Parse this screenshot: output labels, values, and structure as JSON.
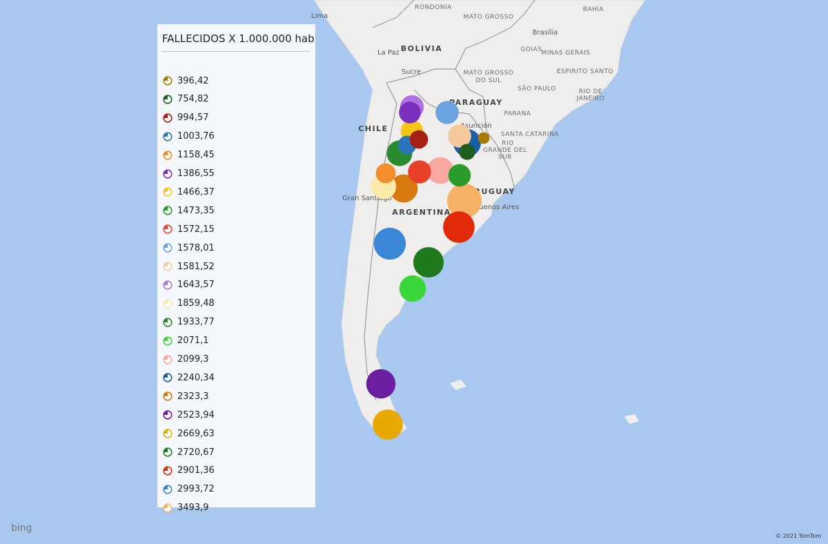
{
  "legend": {
    "title": "FALLECIDOS X 1.000.000 hab",
    "items": [
      {
        "value": 396.42,
        "label": "396,42",
        "color": "#a67c00"
      },
      {
        "value": 754.82,
        "label": "754,82",
        "color": "#1e5e1e"
      },
      {
        "value": 994.57,
        "label": "994,57",
        "color": "#a52010"
      },
      {
        "value": 1003.76,
        "label": "1003,76",
        "color": "#2a74b8"
      },
      {
        "value": 1158.45,
        "label": "1158,45",
        "color": "#f28e2b"
      },
      {
        "value": 1386.55,
        "label": "1386,55",
        "color": "#7b2fbe"
      },
      {
        "value": 1466.37,
        "label": "1466,37",
        "color": "#f5c518"
      },
      {
        "value": 1473.35,
        "label": "1473,35",
        "color": "#2a9a2a"
      },
      {
        "value": 1572.15,
        "label": "1572,15",
        "color": "#e8412a"
      },
      {
        "value": 1578.01,
        "label": "1578,01",
        "color": "#6aa3df"
      },
      {
        "value": 1581.52,
        "label": "1581,52",
        "color": "#f5c99b"
      },
      {
        "value": 1643.57,
        "label": "1643,57",
        "color": "#b072e0"
      },
      {
        "value": 1859.48,
        "label": "1859,48",
        "color": "#fde9a8"
      },
      {
        "value": 1933.77,
        "label": "1933,77",
        "color": "#2b8a2b"
      },
      {
        "value": 2071.1,
        "label": "2071,1",
        "color": "#3ad63a"
      },
      {
        "value": 2099.3,
        "label": "2099,3",
        "color": "#f7a8a0"
      },
      {
        "value": 2240.34,
        "label": "2240,34",
        "color": "#1a5ea8"
      },
      {
        "value": 2323.3,
        "label": "2323,3",
        "color": "#d9780e"
      },
      {
        "value": 2523.94,
        "label": "2523,94",
        "color": "#6a1fa0"
      },
      {
        "value": 2669.63,
        "label": "2669,63",
        "color": "#e8a900"
      },
      {
        "value": 2720.67,
        "label": "2720,67",
        "color": "#1d7a1d"
      },
      {
        "value": 2901.36,
        "label": "2901,36",
        "color": "#e02a0a"
      },
      {
        "value": 2993.72,
        "label": "2993,72",
        "color": "#3a87d8"
      },
      {
        "value": 3493.9,
        "label": "3493,9",
        "color": "#f5b266"
      }
    ]
  },
  "map": {
    "labels": [
      "Lima",
      "RONDONIA",
      "MATO GROSSO",
      "BAHÍA",
      "Brasília",
      "La Paz",
      "BOLIVIA",
      "GOIAS",
      "MINAS GERAIS",
      "Sucre",
      "MATO GROSSO",
      "DO SUL",
      "ESPIRITO SANTO",
      "SÃO PAULO",
      "RIO DE",
      "JANEIRO",
      "PARAGUAY",
      "Asunción",
      "PARANA",
      "SANTA CATARINA",
      "CHILE",
      "RIO",
      "GRANDE DEL",
      "SUR",
      "Gran Santiago",
      "ARGENTINA",
      "URUGUAY",
      "Buenos Aires"
    ]
  },
  "footer": {
    "brand": "bing",
    "copyright": "© 2021 TomTom"
  }
}
